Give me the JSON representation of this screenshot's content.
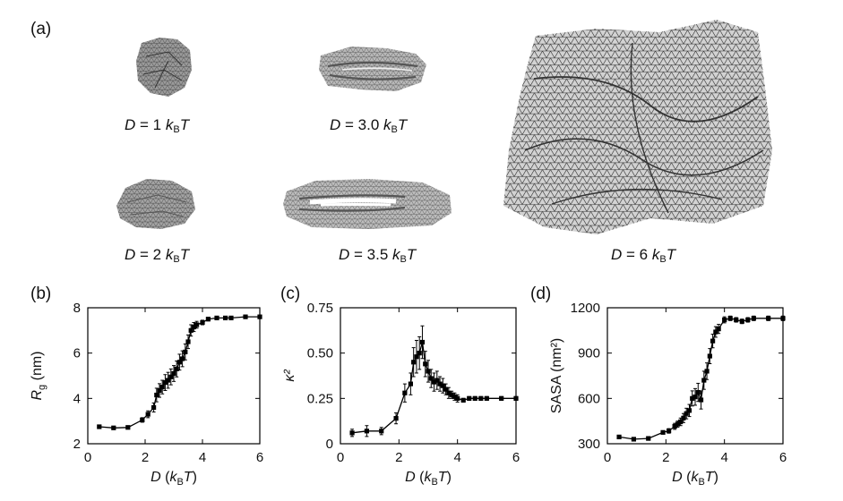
{
  "figure": {
    "panel_a_label": "(a)",
    "panel_b_label": "(b)",
    "panel_c_label": "(c)",
    "panel_d_label": "(d)",
    "captions": [
      {
        "var": "D",
        "eq": " = 1 ",
        "k": "k",
        "sub": "B",
        "T": "T"
      },
      {
        "var": "D",
        "eq": " = 3.0 ",
        "k": "k",
        "sub": "B",
        "T": "T"
      },
      {
        "var": "D",
        "eq": " = 2 ",
        "k": "k",
        "sub": "B",
        "T": "T"
      },
      {
        "var": "D",
        "eq": " = 3.5 ",
        "k": "k",
        "sub": "B",
        "T": "T"
      },
      {
        "var": "D",
        "eq": " = 6 ",
        "k": "k",
        "sub": "B",
        "T": "T"
      }
    ]
  },
  "chart_data": [
    {
      "type": "line",
      "panel": "(b)",
      "ylabel_main": "R",
      "ylabel_sub": "g",
      "ylabel_unit": " (nm)",
      "xlabel_main": "D",
      "xlabel_paren_open": " (",
      "xlabel_k": "k",
      "xlabel_sub": "B",
      "xlabel_T": "T",
      "xlabel_paren_close": ")",
      "xlim": [
        0,
        6
      ],
      "ylim": [
        2,
        8
      ],
      "xticks": [
        0,
        2,
        4,
        6
      ],
      "yticks": [
        2,
        4,
        6,
        8
      ],
      "x": [
        0.4,
        0.9,
        1.4,
        1.9,
        2.1,
        2.3,
        2.4,
        2.5,
        2.6,
        2.7,
        2.8,
        2.9,
        3.0,
        3.1,
        3.2,
        3.3,
        3.4,
        3.5,
        3.6,
        3.7,
        3.8,
        4.0,
        4.2,
        4.5,
        4.8,
        5.0,
        5.5,
        6.0
      ],
      "y": [
        2.75,
        2.7,
        2.72,
        3.05,
        3.3,
        3.6,
        4.15,
        4.35,
        4.5,
        4.7,
        4.8,
        4.95,
        5.1,
        5.3,
        5.6,
        5.75,
        6.05,
        6.5,
        7.0,
        7.15,
        7.25,
        7.35,
        7.5,
        7.55,
        7.55,
        7.55,
        7.6,
        7.6
      ],
      "yerr": [
        0.05,
        0.05,
        0.05,
        0.1,
        0.15,
        0.2,
        0.3,
        0.3,
        0.3,
        0.35,
        0.35,
        0.35,
        0.35,
        0.35,
        0.35,
        0.35,
        0.35,
        0.3,
        0.25,
        0.2,
        0.15,
        0.1,
        0.08,
        0.06,
        0.05,
        0.05,
        0.05,
        0.05
      ]
    },
    {
      "type": "line",
      "panel": "(c)",
      "ylabel_main": "κ²",
      "xlabel_main": "D",
      "xlabel_paren_open": " (",
      "xlabel_k": "k",
      "xlabel_sub": "B",
      "xlabel_T": "T",
      "xlabel_paren_close": ")",
      "xlim": [
        0,
        6
      ],
      "ylim": [
        0,
        0.75
      ],
      "xticks": [
        0,
        2,
        4,
        6
      ],
      "yticks": [
        0,
        0.25,
        0.5,
        0.75
      ],
      "ytick_labels": [
        "0",
        "0.25",
        "0.50",
        "0.75"
      ],
      "x": [
        0.4,
        0.9,
        1.4,
        1.9,
        2.2,
        2.4,
        2.5,
        2.6,
        2.7,
        2.8,
        2.9,
        3.0,
        3.1,
        3.2,
        3.3,
        3.4,
        3.5,
        3.6,
        3.7,
        3.8,
        3.9,
        4.0,
        4.2,
        4.4,
        4.6,
        4.8,
        5.0,
        5.5,
        6.0
      ],
      "y": [
        0.06,
        0.07,
        0.07,
        0.14,
        0.28,
        0.33,
        0.45,
        0.48,
        0.5,
        0.56,
        0.44,
        0.4,
        0.36,
        0.34,
        0.35,
        0.33,
        0.32,
        0.3,
        0.28,
        0.27,
        0.26,
        0.25,
        0.24,
        0.25,
        0.25,
        0.25,
        0.25,
        0.25,
        0.25
      ],
      "yerr": [
        0.02,
        0.03,
        0.02,
        0.03,
        0.05,
        0.06,
        0.08,
        0.09,
        0.09,
        0.09,
        0.07,
        0.06,
        0.05,
        0.05,
        0.05,
        0.04,
        0.04,
        0.03,
        0.03,
        0.02,
        0.02,
        0.02,
        0.01,
        0.01,
        0.01,
        0.01,
        0.01,
        0.01,
        0.01
      ]
    },
    {
      "type": "line",
      "panel": "(d)",
      "ylabel_main": "SASA (nm²)",
      "xlabel_main": "D",
      "xlabel_paren_open": " (",
      "xlabel_k": "k",
      "xlabel_sub": "B",
      "xlabel_T": "T",
      "xlabel_paren_close": ")",
      "xlim": [
        0,
        6
      ],
      "ylim": [
        300,
        1200
      ],
      "xticks": [
        0,
        2,
        4,
        6
      ],
      "yticks": [
        300,
        600,
        900,
        1200
      ],
      "x": [
        0.4,
        0.9,
        1.4,
        1.9,
        2.1,
        2.3,
        2.4,
        2.5,
        2.6,
        2.7,
        2.8,
        2.9,
        3.0,
        3.1,
        3.2,
        3.3,
        3.4,
        3.5,
        3.6,
        3.7,
        3.8,
        4.0,
        4.2,
        4.4,
        4.6,
        4.8,
        5.0,
        5.5,
        6.0
      ],
      "y": [
        345,
        330,
        335,
        375,
        385,
        415,
        430,
        445,
        470,
        500,
        520,
        600,
        610,
        640,
        590,
        720,
        780,
        880,
        980,
        1040,
        1060,
        1120,
        1130,
        1120,
        1110,
        1120,
        1130,
        1130,
        1130
      ],
      "yerr": [
        10,
        10,
        10,
        10,
        15,
        20,
        20,
        25,
        30,
        35,
        40,
        50,
        55,
        60,
        60,
        60,
        55,
        50,
        45,
        35,
        30,
        20,
        15,
        15,
        15,
        15,
        15,
        15,
        15
      ]
    }
  ]
}
